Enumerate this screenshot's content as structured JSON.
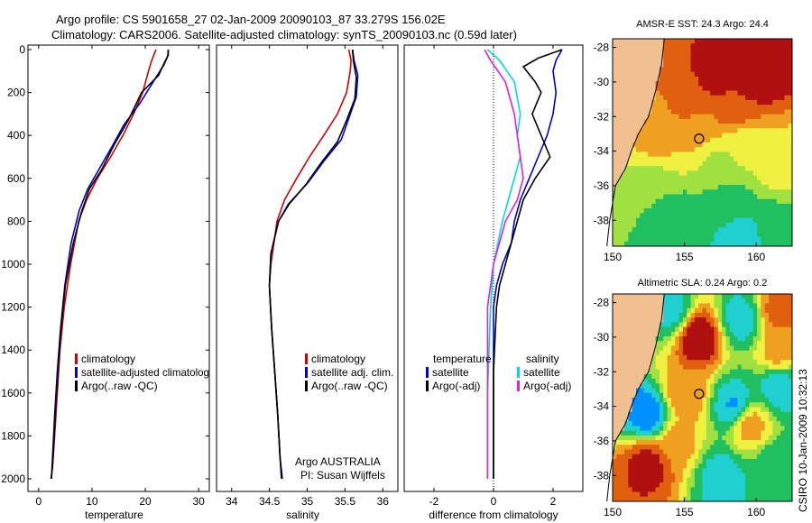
{
  "title": {
    "line1": "Argo profile: CS 5901658_27 02-Jan-2009 20090103_87 33.279S 156.02E",
    "line2": "Climatology: CARS2006. Satellite-adjusted climatology: synTS_20090103.nc (0.59d later)"
  },
  "credit": "CSIRO 10-Jan-2009 10:32:13",
  "colors": {
    "red": "#d40000",
    "blue": "#0000d0",
    "black": "#000000",
    "cyan": "#00d8e8",
    "magenta": "#e020e0"
  },
  "chart_data": [
    {
      "id": "temperature",
      "type": "line",
      "xlabel": "temperature",
      "xlim": [
        -2,
        32
      ],
      "ylim": [
        0,
        2050
      ],
      "y_reversed": true,
      "xticks": [
        0,
        10,
        20,
        30
      ],
      "yticks": [
        0,
        200,
        400,
        600,
        800,
        1000,
        1200,
        1400,
        1600,
        1800,
        2000
      ],
      "legend": {
        "placement": "lower-center",
        "entries": [
          {
            "label": "climatology",
            "color": "#d40000"
          },
          {
            "label": "satellite-adjusted climatolog",
            "color": "#0000d0"
          },
          {
            "label": "Argo(..raw -QC)",
            "color": "#000000"
          }
        ]
      },
      "series": [
        {
          "color": "#d40000",
          "x": [
            22.0,
            21.2,
            20.6,
            19.5,
            17.8,
            15.8,
            13.5,
            11.0,
            9.0,
            7.5,
            6.0,
            4.8,
            4.0,
            3.5,
            3.0,
            2.6,
            2.3
          ],
          "y": [
            0,
            50,
            100,
            200,
            300,
            400,
            500,
            600,
            700,
            800,
            1000,
            1200,
            1400,
            1600,
            1800,
            1950,
            2000
          ]
        },
        {
          "color": "#0000d0",
          "x": [
            24.3,
            24.2,
            23.5,
            21.5,
            19.0,
            16.0,
            13.8,
            11.5,
            9.2,
            7.6,
            6.1,
            4.9,
            4.1,
            3.5,
            3.0,
            2.6,
            2.4
          ],
          "y": [
            0,
            30,
            70,
            150,
            250,
            350,
            450,
            550,
            650,
            750,
            900,
            1100,
            1300,
            1500,
            1700,
            1900,
            2000
          ]
        },
        {
          "color": "#000000",
          "x": [
            24.3,
            24.3,
            23.6,
            22.5,
            19.3,
            16.8,
            14.0,
            11.8,
            9.5,
            8.0,
            6.5,
            5.0,
            4.2,
            3.6,
            3.1,
            2.7,
            2.4
          ],
          "y": [
            0,
            25,
            60,
            120,
            200,
            330,
            450,
            560,
            650,
            760,
            900,
            1100,
            1300,
            1500,
            1700,
            1900,
            2000
          ]
        }
      ]
    },
    {
      "id": "salinity",
      "type": "line",
      "xlabel": "salinity",
      "xlim": [
        33.8,
        36.2
      ],
      "ylim": [
        0,
        2050
      ],
      "y_reversed": true,
      "xticks": [
        34,
        34.5,
        35,
        35.5,
        36
      ],
      "xtick_labels": [
        "34",
        "34.5",
        "35",
        "35.5",
        "36"
      ],
      "legend": {
        "placement": "lower-right",
        "entries": [
          {
            "label": "climatology",
            "color": "#d40000"
          },
          {
            "label": "satellite adj. clim.",
            "color": "#0000d0"
          },
          {
            "label": "Argo(..raw -QC)",
            "color": "#000000"
          }
        ]
      },
      "annotation": {
        "lines": [
          "Argo AUSTRALIA",
          "PI: Susan Wijffels"
        ]
      },
      "series": [
        {
          "color": "#d40000",
          "x": [
            35.55,
            35.58,
            35.57,
            35.52,
            35.4,
            35.22,
            35.03,
            34.86,
            34.7,
            34.6,
            34.52,
            34.5,
            34.53,
            34.57,
            34.61,
            34.64,
            34.66
          ],
          "y": [
            0,
            50,
            100,
            200,
            300,
            400,
            500,
            600,
            700,
            800,
            1000,
            1100,
            1300,
            1500,
            1700,
            1900,
            2000
          ]
        },
        {
          "color": "#0000d0",
          "x": [
            35.6,
            35.62,
            35.67,
            35.65,
            35.55,
            35.45,
            35.22,
            35.01,
            34.75,
            34.62,
            34.52,
            34.5,
            34.53,
            34.57,
            34.61,
            34.64,
            34.66
          ],
          "y": [
            0,
            50,
            120,
            220,
            320,
            420,
            520,
            620,
            720,
            800,
            950,
            1100,
            1300,
            1500,
            1700,
            1900,
            2000
          ]
        },
        {
          "color": "#000000",
          "x": [
            35.6,
            35.61,
            35.65,
            35.63,
            35.52,
            35.4,
            35.18,
            34.98,
            34.76,
            34.62,
            34.52,
            34.5,
            34.53,
            34.57,
            34.61,
            34.64,
            34.67
          ],
          "y": [
            0,
            50,
            130,
            230,
            330,
            430,
            530,
            630,
            720,
            800,
            950,
            1100,
            1300,
            1500,
            1700,
            1900,
            2000
          ]
        }
      ]
    },
    {
      "id": "difference",
      "type": "line",
      "xlabel": "difference from climatology",
      "xlim": [
        -3,
        3
      ],
      "ylim": [
        0,
        2050
      ],
      "y_reversed": true,
      "xticks": [
        -2,
        0,
        2
      ],
      "zero_line": true,
      "legend": {
        "placement": "lower-center",
        "columns": [
          {
            "heading": "temperature",
            "entries": [
              {
                "label": "satellite",
                "color": "#0000d0"
              },
              {
                "label": "Argo(-adj)",
                "color": "#000000"
              }
            ]
          },
          {
            "heading": "salinity",
            "entries": [
              {
                "label": "satellite",
                "color": "#00d8e8"
              },
              {
                "label": "Argo(-adj)",
                "color": "#e020e0"
              }
            ]
          }
        ]
      },
      "series": [
        {
          "name": "temperature satellite",
          "color": "#0000d0",
          "x": [
            2.3,
            2.1,
            2.0,
            2.1,
            2.0,
            1.8,
            1.5,
            1.2,
            0.9,
            0.7,
            0.6,
            0.3,
            0.1,
            0.0,
            0.0,
            0.0
          ],
          "y": [
            0,
            50,
            100,
            200,
            300,
            400,
            500,
            600,
            700,
            800,
            900,
            1000,
            1100,
            1200,
            1500,
            2000
          ]
        },
        {
          "name": "temperature Argo(-adj)",
          "color": "#000000",
          "x": [
            2.3,
            1.5,
            1.0,
            1.4,
            1.6,
            1.3,
            1.6,
            1.9,
            1.4,
            1.0,
            0.8,
            0.6,
            0.4,
            0.2,
            0.1,
            0.0,
            0.0
          ],
          "y": [
            0,
            40,
            80,
            150,
            200,
            300,
            400,
            500,
            600,
            700,
            800,
            900,
            1000,
            1100,
            1200,
            1500,
            2000
          ]
        },
        {
          "name": "salinity satellite",
          "color": "#00d8e8",
          "x": [
            -0.2,
            0.2,
            0.7,
            0.9,
            0.8,
            0.9,
            0.7,
            0.5,
            0.3,
            0.0,
            -0.1,
            -0.2,
            -0.2
          ],
          "y": [
            0,
            50,
            150,
            300,
            400,
            500,
            600,
            700,
            800,
            1000,
            1200,
            1600,
            2000
          ]
        },
        {
          "name": "salinity Argo(-adj)",
          "color": "#e020e0",
          "x": [
            -0.3,
            -0.1,
            0.4,
            0.7,
            0.8,
            0.9,
            1.0,
            0.8,
            0.4,
            0.0,
            -0.2,
            -0.2,
            -0.2
          ],
          "y": [
            0,
            50,
            150,
            300,
            400,
            500,
            600,
            700,
            800,
            1000,
            1200,
            1600,
            2000
          ]
        }
      ]
    },
    {
      "id": "sst-map",
      "type": "heatmap",
      "title": "AMSR-E SST: 24.3 Argo: 24.4",
      "xlim": [
        150,
        162.5
      ],
      "ylim": [
        -39.5,
        -27.5
      ],
      "xticks": [
        150,
        155,
        160
      ],
      "yticks": [
        -38,
        -36,
        -34,
        -32,
        -30,
        -28
      ],
      "marker": {
        "lon": 156.02,
        "lat": -33.279
      },
      "land_color": "#f0c090",
      "palette": [
        "#1030c0",
        "#0090ff",
        "#20d0d0",
        "#20c060",
        "#a0e040",
        "#f0f040",
        "#f0a020",
        "#e06010",
        "#b01010"
      ],
      "blobs": [
        {
          "lon": 160,
          "lat": -29.5,
          "v": 8.6
        },
        {
          "lon": 157,
          "lat": -29.5,
          "v": 8.0
        },
        {
          "lon": 155.5,
          "lat": -31.0,
          "v": 7.2
        },
        {
          "lon": 158.5,
          "lat": -31.5,
          "v": 7.4
        },
        {
          "lon": 153.5,
          "lat": -30.5,
          "v": 6.5
        },
        {
          "lon": 156,
          "lat": -33.0,
          "v": 5.6
        },
        {
          "lon": 153.0,
          "lat": -33.0,
          "v": 5.8
        },
        {
          "lon": 159,
          "lat": -33.5,
          "v": 5.0
        },
        {
          "lon": 157.5,
          "lat": -35.0,
          "v": 4.0
        },
        {
          "lon": 161.5,
          "lat": -35.0,
          "v": 4.8
        },
        {
          "lon": 152.5,
          "lat": -36.5,
          "v": 3.5
        },
        {
          "lon": 158,
          "lat": -37.0,
          "v": 2.8
        },
        {
          "lon": 155,
          "lat": -38.5,
          "v": 2.6
        },
        {
          "lon": 161,
          "lat": -38.5,
          "v": 2.8
        },
        {
          "lon": 159,
          "lat": -39.2,
          "v": 1.8
        }
      ]
    },
    {
      "id": "sla-map",
      "type": "heatmap",
      "title": "Altimetric SLA: 0.24 Argo: 0.2",
      "xlim": [
        150,
        162.5
      ],
      "ylim": [
        -39.5,
        -27.5
      ],
      "xticks": [
        150,
        155,
        160
      ],
      "yticks": [
        -38,
        -36,
        -34,
        -32,
        -30,
        -28
      ],
      "marker": {
        "lon": 156.02,
        "lat": -33.279
      },
      "land_color": "#f0c090",
      "palette": [
        "#1030c0",
        "#0090ff",
        "#20d0d0",
        "#20c060",
        "#a0e040",
        "#f0f040",
        "#f0a020",
        "#e06010",
        "#b01010"
      ],
      "blobs": [
        {
          "lon": 156,
          "lat": -30.0,
          "v": 8.5
        },
        {
          "lon": 161.5,
          "lat": -28.5,
          "v": 7.0
        },
        {
          "lon": 155,
          "lat": -33.3,
          "v": 6.5
        },
        {
          "lon": 152.5,
          "lat": -37.3,
          "v": 8.0
        },
        {
          "lon": 159.5,
          "lat": -35.0,
          "v": 6.3
        },
        {
          "lon": 161.5,
          "lat": -31.0,
          "v": 6.0
        },
        {
          "lon": 152.5,
          "lat": -34.5,
          "v": 0.6
        },
        {
          "lon": 158.5,
          "lat": -34.0,
          "v": 1.2
        },
        {
          "lon": 161.5,
          "lat": -32.8,
          "v": 1.6
        },
        {
          "lon": 157.5,
          "lat": -38.0,
          "v": 2.0
        },
        {
          "lon": 154,
          "lat": -28.5,
          "v": 2.0
        },
        {
          "lon": 159,
          "lat": -29.0,
          "v": 1.8
        },
        {
          "lon": 161.5,
          "lat": -37.5,
          "v": 2.5
        },
        {
          "lon": 154.5,
          "lat": -36.0,
          "v": 6.0
        }
      ]
    }
  ]
}
